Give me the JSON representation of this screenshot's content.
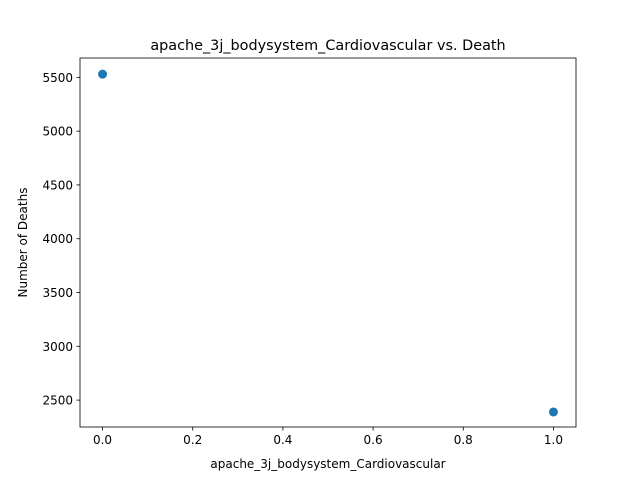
{
  "chart_data": {
    "type": "scatter",
    "title": "apache_3j_bodysystem_Cardiovascular vs. Death",
    "xlabel": "apache_3j_bodysystem_Cardiovascular",
    "ylabel": "Number of Deaths",
    "xlim": [
      -0.05,
      1.05
    ],
    "ylim": [
      2250,
      5680
    ],
    "xticks": [
      0.0,
      0.2,
      0.4,
      0.6,
      0.8,
      1.0
    ],
    "xtick_labels": [
      "0.0",
      "0.2",
      "0.4",
      "0.6",
      "0.8",
      "1.0"
    ],
    "yticks": [
      2500,
      3000,
      3500,
      4000,
      4500,
      5000,
      5500
    ],
    "ytick_labels": [
      "2500",
      "3000",
      "3500",
      "4000",
      "4500",
      "5000",
      "5500"
    ],
    "grid": false,
    "series": [
      {
        "color": "#1f77b4",
        "points": [
          {
            "x": 0,
            "y": 5530
          },
          {
            "x": 1,
            "y": 2390
          }
        ]
      }
    ]
  }
}
